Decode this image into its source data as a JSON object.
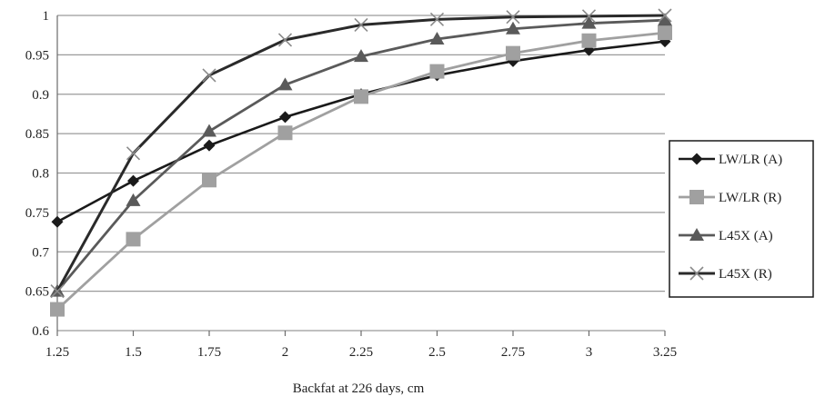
{
  "chart_data": {
    "type": "line",
    "title": "",
    "xlabel": "Backfat at 226 days, cm",
    "ylabel": "",
    "x": [
      "1.25",
      "1.5",
      "1.75",
      "2",
      "2.25",
      "2.5",
      "2.75",
      "3",
      "3.25"
    ],
    "y_ticks": [
      "0.6",
      "0.65",
      "0.7",
      "0.75",
      "0.8",
      "0.85",
      "0.9",
      "0.95",
      "1"
    ],
    "ylim": [
      0.6,
      1.0
    ],
    "grid": "horizontal",
    "legend_position": "right",
    "series": [
      {
        "name": "LW/LR (A)",
        "marker": "diamond",
        "color": "#1a1a1a",
        "values": [
          0.738,
          0.79,
          0.835,
          0.871,
          0.9,
          0.924,
          0.942,
          0.956,
          0.967
        ]
      },
      {
        "name": "LW/LR (R)",
        "marker": "square",
        "color": "#a0a0a0",
        "values": [
          0.627,
          0.716,
          0.791,
          0.851,
          0.897,
          0.929,
          0.952,
          0.968,
          0.978
        ]
      },
      {
        "name": "L45X (A)",
        "marker": "triangle",
        "color": "#5a5a5a",
        "values": [
          0.65,
          0.765,
          0.853,
          0.912,
          0.948,
          0.97,
          0.983,
          0.99,
          0.994
        ]
      },
      {
        "name": "L45X (R)",
        "marker": "x",
        "color": "#2a2a2a",
        "values": [
          0.65,
          0.825,
          0.924,
          0.969,
          0.988,
          0.995,
          0.998,
          0.999,
          1.0
        ]
      }
    ]
  }
}
